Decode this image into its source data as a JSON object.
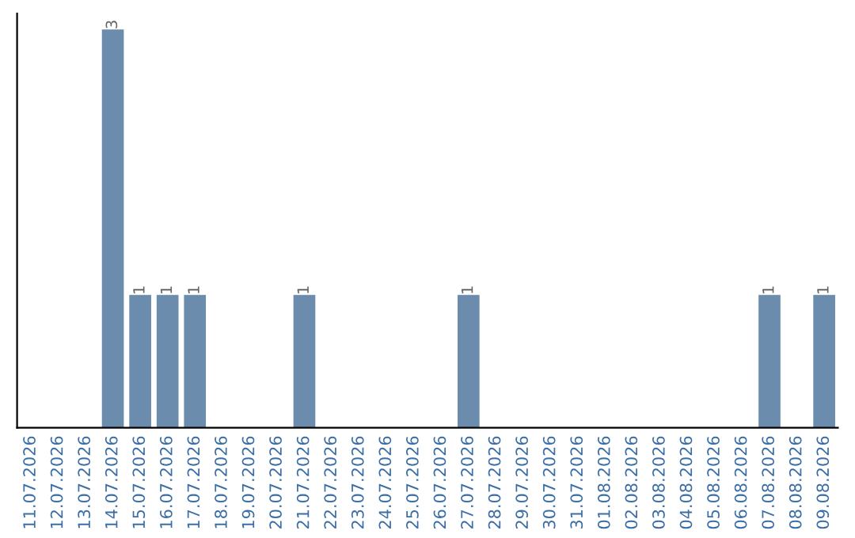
{
  "chart_data": {
    "type": "bar",
    "categories": [
      "11.07.2026",
      "12.07.2026",
      "13.07.2026",
      "14.07.2026",
      "15.07.2026",
      "16.07.2026",
      "17.07.2026",
      "18.07.2026",
      "19.07.2026",
      "20.07.2026",
      "21.07.2026",
      "22.07.2026",
      "23.07.2026",
      "24.07.2026",
      "25.07.2026",
      "26.07.2026",
      "27.07.2026",
      "28.07.2026",
      "29.07.2026",
      "30.07.2026",
      "31.07.2026",
      "01.08.2026",
      "02.08.2026",
      "03.08.2026",
      "04.08.2026",
      "05.08.2026",
      "06.08.2026",
      "07.08.2026",
      "08.08.2026",
      "09.08.2026"
    ],
    "values": [
      0,
      0,
      0,
      3,
      1,
      1,
      1,
      0,
      0,
      0,
      1,
      0,
      0,
      0,
      0,
      0,
      1,
      0,
      0,
      0,
      0,
      0,
      0,
      0,
      0,
      0,
      0,
      1,
      0,
      1
    ],
    "value_labels": [
      null,
      null,
      null,
      "3",
      "1",
      "1",
      "1",
      null,
      null,
      null,
      "1",
      null,
      null,
      null,
      null,
      null,
      "1",
      null,
      null,
      null,
      null,
      null,
      null,
      null,
      null,
      null,
      null,
      "1",
      null,
      "1"
    ],
    "color": "#6b8cad",
    "tick_labels": "x",
    "grid": false,
    "legend": false
  }
}
